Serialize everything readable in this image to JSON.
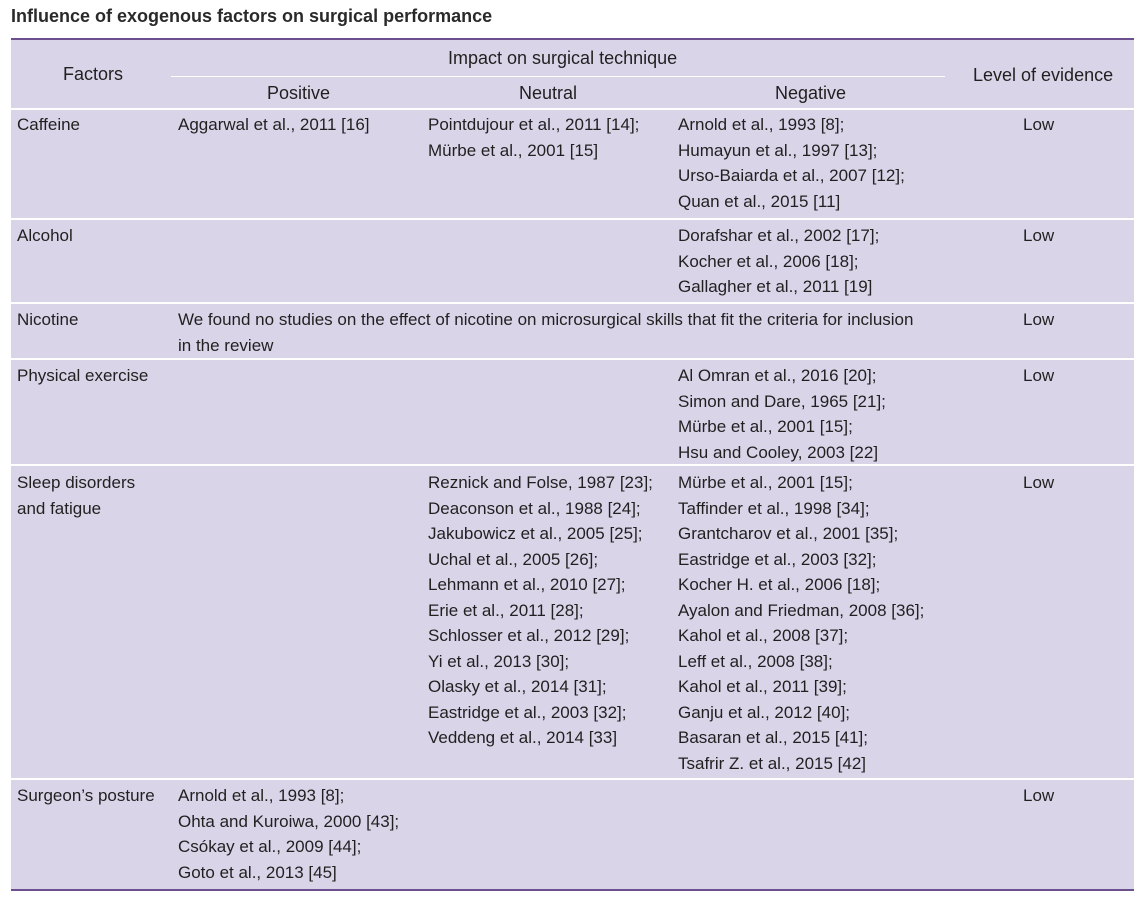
{
  "caption": "Influence of exogenous factors on surgical performance",
  "header": {
    "factors": "Factors",
    "impact": "Impact on surgical technique",
    "positive": "Positive",
    "neutral": "Neutral",
    "negative": "Negative",
    "evidence": "Level of evidence"
  },
  "rows": [
    {
      "factor": [
        "Caffeine"
      ],
      "positive": [
        "Aggarwal et al., 2011 [16]"
      ],
      "neutral": [
        "Pointdujour et al., 2011 [14];",
        "Mürbe et al., 2001 [15]"
      ],
      "negative": [
        "Arnold et al., 1993 [8];",
        "Humayun et al., 1997 [13];",
        "Urso-Baiarda et al., 2007 [12];",
        "Quan et al., 2015 [11]"
      ],
      "evidence": "Low"
    },
    {
      "factor": [
        "Alcohol"
      ],
      "positive": [],
      "neutral": [],
      "negative": [
        "Dorafshar et al., 2002 [17];",
        "Kocher et al., 2006 [18];",
        "Gallagher et al., 2011 [19]"
      ],
      "evidence": "Low"
    },
    {
      "factor": [
        "Nicotine"
      ],
      "span": [
        "We found no studies on the effect of nicotine on microsurgical skills that fit the criteria for inclusion",
        "in the review"
      ],
      "evidence": "Low"
    },
    {
      "factor": [
        "Physical exercise"
      ],
      "positive": [],
      "neutral": [],
      "negative": [
        "Al Omran et al., 2016 [20];",
        "Simon and Dare, 1965 [21];",
        "Mürbe et al., 2001 [15];",
        "Hsu and Cooley, 2003 [22]"
      ],
      "evidence": "Low"
    },
    {
      "factor": [
        "Sleep disorders",
        "and fatigue"
      ],
      "positive": [],
      "neutral": [
        "Reznick and Folse, 1987 [23];",
        "Deaconson et al., 1988 [24];",
        "Jakubowicz et al., 2005 [25];",
        "Uchal et al., 2005 [26];",
        "Lehmann et al., 2010 [27];",
        "Erie et al., 2011 [28];",
        "Schlosser et al., 2012 [29];",
        "Yi et al., 2013 [30];",
        "Olasky et al., 2014 [31];",
        "Eastridge et al., 2003 [32];",
        "Veddeng et al., 2014 [33]"
      ],
      "negative": [
        "Mürbe et al., 2001 [15];",
        "Taffinder et al., 1998 [34];",
        "Grantcharov et al., 2001 [35];",
        "Eastridge et al., 2003 [32];",
        "Kocher H. et al., 2006 [18];",
        "Ayalon and Friedman, 2008 [36];",
        "Kahol et al., 2008 [37];",
        "Leff et al., 2008 [38];",
        "Kahol et al., 2011 [39];",
        "Ganju et al., 2012 [40];",
        "Basaran et al., 2015 [41];",
        "Tsafrir Z. et al., 2015 [42]"
      ],
      "evidence": "Low"
    },
    {
      "factor": [
        "Surgeon’s posture"
      ],
      "positive": [
        "Arnold et al., 1993 [8];",
        "Ohta and Kuroiwa, 2000 [43];",
        "Csókay et al., 2009 [44];",
        "Goto et al., 2013 [45]"
      ],
      "neutral": [],
      "negative": [],
      "evidence": "Low"
    }
  ]
}
